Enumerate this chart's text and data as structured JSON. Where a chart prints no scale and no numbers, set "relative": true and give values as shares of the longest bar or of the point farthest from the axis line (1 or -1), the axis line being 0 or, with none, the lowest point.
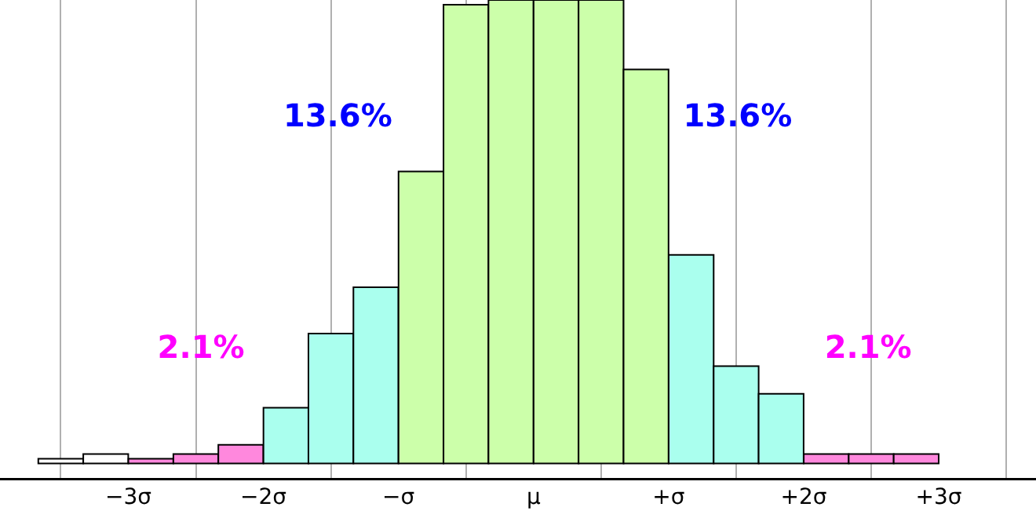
{
  "chart_data": {
    "type": "bar",
    "relative": true,
    "x": [
      -3.5,
      -3.167,
      -2.833,
      -2.5,
      -2.167,
      -1.833,
      -1.5,
      -1.167,
      -0.833,
      -0.5,
      -0.167,
      0.167,
      0.5,
      0.833,
      1.167,
      1.5,
      1.833,
      2.167,
      2.5,
      2.833
    ],
    "values": [
      0.01,
      0.02,
      0.01,
      0.02,
      0.04,
      0.12,
      0.28,
      0.38,
      0.63,
      0.99,
      1,
      1,
      1,
      0.85,
      0.45,
      0.21,
      0.15,
      0.02,
      0.02,
      0.02
    ],
    "colors": [
      "#ffffff",
      "#ffffff",
      "#ff88dd",
      "#ff88dd",
      "#ff88dd",
      "#aaffee",
      "#aaffee",
      "#aaffee",
      "#ccffaa",
      "#ccffaa",
      "#ccffaa",
      "#ccffaa",
      "#ccffaa",
      "#ccffaa",
      "#aaffee",
      "#aaffee",
      "#aaffee",
      "#ff88dd",
      "#ff88dd",
      "#ff88dd"
    ],
    "xlim": [
      -3.95,
      3.72
    ],
    "xticks": [
      {
        "value": -3,
        "label": "−3σ"
      },
      {
        "value": -2,
        "label": "−2σ"
      },
      {
        "value": -1,
        "label": "−σ"
      },
      {
        "value": 0,
        "label": "μ"
      },
      {
        "value": 1,
        "label": "+σ"
      },
      {
        "value": 2,
        "label": "+2σ"
      },
      {
        "value": 3,
        "label": "+3σ"
      }
    ],
    "grid": "x",
    "annotations": [
      "13.6%",
      "13.6%",
      "2.1%",
      "2.1%"
    ]
  }
}
